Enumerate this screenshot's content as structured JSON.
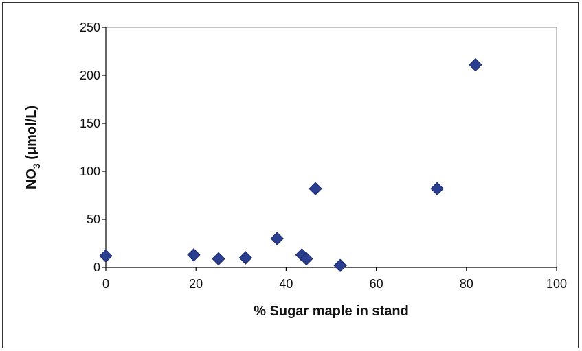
{
  "chart_data": {
    "type": "scatter",
    "xlabel": "% Sugar maple in stand",
    "ylabel": {
      "main": "NO",
      "subscript": "3",
      "units": " (μmol/L)"
    },
    "xlim": [
      0,
      100
    ],
    "ylim": [
      0,
      250
    ],
    "x_ticks": [
      "0",
      "20",
      "40",
      "60",
      "80",
      "100"
    ],
    "y_ticks": [
      "0",
      "50",
      "100",
      "150",
      "200",
      "250"
    ],
    "grid": false,
    "marker": "diamond",
    "marker_color": "#2a3f8f",
    "points": [
      {
        "x": 0,
        "y": 12
      },
      {
        "x": 19.5,
        "y": 13
      },
      {
        "x": 25,
        "y": 9
      },
      {
        "x": 31,
        "y": 10
      },
      {
        "x": 38,
        "y": 30
      },
      {
        "x": 43.5,
        "y": 13
      },
      {
        "x": 44.5,
        "y": 9
      },
      {
        "x": 46.5,
        "y": 82
      },
      {
        "x": 52,
        "y": 2
      },
      {
        "x": 73.5,
        "y": 82
      },
      {
        "x": 82,
        "y": 211
      }
    ]
  }
}
